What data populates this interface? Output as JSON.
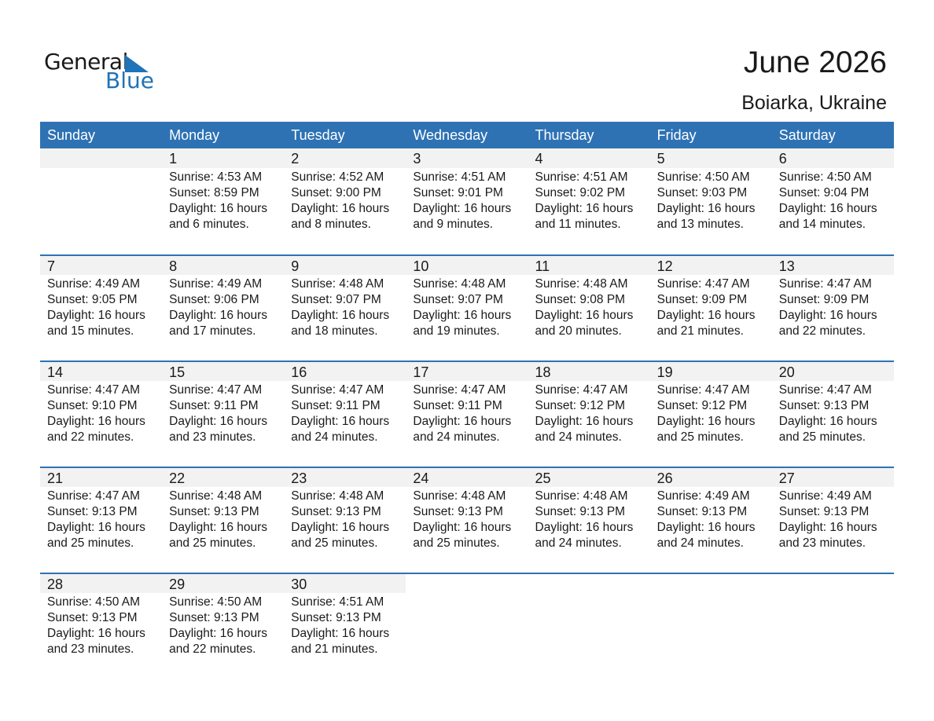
{
  "logo": {
    "text_general": "General",
    "text_blue": "Blue",
    "color": "#1f73b8"
  },
  "header": {
    "title": "June 2026",
    "location": "Boiarka, Ukraine"
  },
  "colors": {
    "header_bg": "#2e72b4",
    "day_band": "#f2f2f2"
  },
  "weekdays": [
    "Sunday",
    "Monday",
    "Tuesday",
    "Wednesday",
    "Thursday",
    "Friday",
    "Saturday"
  ],
  "weeks": [
    [
      null,
      {
        "day": "1",
        "sunrise": "Sunrise: 4:53 AM",
        "sunset": "Sunset: 8:59 PM",
        "daylight1": "Daylight: 16 hours",
        "daylight2": "and 6 minutes."
      },
      {
        "day": "2",
        "sunrise": "Sunrise: 4:52 AM",
        "sunset": "Sunset: 9:00 PM",
        "daylight1": "Daylight: 16 hours",
        "daylight2": "and 8 minutes."
      },
      {
        "day": "3",
        "sunrise": "Sunrise: 4:51 AM",
        "sunset": "Sunset: 9:01 PM",
        "daylight1": "Daylight: 16 hours",
        "daylight2": "and 9 minutes."
      },
      {
        "day": "4",
        "sunrise": "Sunrise: 4:51 AM",
        "sunset": "Sunset: 9:02 PM",
        "daylight1": "Daylight: 16 hours",
        "daylight2": "and 11 minutes."
      },
      {
        "day": "5",
        "sunrise": "Sunrise: 4:50 AM",
        "sunset": "Sunset: 9:03 PM",
        "daylight1": "Daylight: 16 hours",
        "daylight2": "and 13 minutes."
      },
      {
        "day": "6",
        "sunrise": "Sunrise: 4:50 AM",
        "sunset": "Sunset: 9:04 PM",
        "daylight1": "Daylight: 16 hours",
        "daylight2": "and 14 minutes."
      }
    ],
    [
      {
        "day": "7",
        "sunrise": "Sunrise: 4:49 AM",
        "sunset": "Sunset: 9:05 PM",
        "daylight1": "Daylight: 16 hours",
        "daylight2": "and 15 minutes."
      },
      {
        "day": "8",
        "sunrise": "Sunrise: 4:49 AM",
        "sunset": "Sunset: 9:06 PM",
        "daylight1": "Daylight: 16 hours",
        "daylight2": "and 17 minutes."
      },
      {
        "day": "9",
        "sunrise": "Sunrise: 4:48 AM",
        "sunset": "Sunset: 9:07 PM",
        "daylight1": "Daylight: 16 hours",
        "daylight2": "and 18 minutes."
      },
      {
        "day": "10",
        "sunrise": "Sunrise: 4:48 AM",
        "sunset": "Sunset: 9:07 PM",
        "daylight1": "Daylight: 16 hours",
        "daylight2": "and 19 minutes."
      },
      {
        "day": "11",
        "sunrise": "Sunrise: 4:48 AM",
        "sunset": "Sunset: 9:08 PM",
        "daylight1": "Daylight: 16 hours",
        "daylight2": "and 20 minutes."
      },
      {
        "day": "12",
        "sunrise": "Sunrise: 4:47 AM",
        "sunset": "Sunset: 9:09 PM",
        "daylight1": "Daylight: 16 hours",
        "daylight2": "and 21 minutes."
      },
      {
        "day": "13",
        "sunrise": "Sunrise: 4:47 AM",
        "sunset": "Sunset: 9:09 PM",
        "daylight1": "Daylight: 16 hours",
        "daylight2": "and 22 minutes."
      }
    ],
    [
      {
        "day": "14",
        "sunrise": "Sunrise: 4:47 AM",
        "sunset": "Sunset: 9:10 PM",
        "daylight1": "Daylight: 16 hours",
        "daylight2": "and 22 minutes."
      },
      {
        "day": "15",
        "sunrise": "Sunrise: 4:47 AM",
        "sunset": "Sunset: 9:11 PM",
        "daylight1": "Daylight: 16 hours",
        "daylight2": "and 23 minutes."
      },
      {
        "day": "16",
        "sunrise": "Sunrise: 4:47 AM",
        "sunset": "Sunset: 9:11 PM",
        "daylight1": "Daylight: 16 hours",
        "daylight2": "and 24 minutes."
      },
      {
        "day": "17",
        "sunrise": "Sunrise: 4:47 AM",
        "sunset": "Sunset: 9:11 PM",
        "daylight1": "Daylight: 16 hours",
        "daylight2": "and 24 minutes."
      },
      {
        "day": "18",
        "sunrise": "Sunrise: 4:47 AM",
        "sunset": "Sunset: 9:12 PM",
        "daylight1": "Daylight: 16 hours",
        "daylight2": "and 24 minutes."
      },
      {
        "day": "19",
        "sunrise": "Sunrise: 4:47 AM",
        "sunset": "Sunset: 9:12 PM",
        "daylight1": "Daylight: 16 hours",
        "daylight2": "and 25 minutes."
      },
      {
        "day": "20",
        "sunrise": "Sunrise: 4:47 AM",
        "sunset": "Sunset: 9:13 PM",
        "daylight1": "Daylight: 16 hours",
        "daylight2": "and 25 minutes."
      }
    ],
    [
      {
        "day": "21",
        "sunrise": "Sunrise: 4:47 AM",
        "sunset": "Sunset: 9:13 PM",
        "daylight1": "Daylight: 16 hours",
        "daylight2": "and 25 minutes."
      },
      {
        "day": "22",
        "sunrise": "Sunrise: 4:48 AM",
        "sunset": "Sunset: 9:13 PM",
        "daylight1": "Daylight: 16 hours",
        "daylight2": "and 25 minutes."
      },
      {
        "day": "23",
        "sunrise": "Sunrise: 4:48 AM",
        "sunset": "Sunset: 9:13 PM",
        "daylight1": "Daylight: 16 hours",
        "daylight2": "and 25 minutes."
      },
      {
        "day": "24",
        "sunrise": "Sunrise: 4:48 AM",
        "sunset": "Sunset: 9:13 PM",
        "daylight1": "Daylight: 16 hours",
        "daylight2": "and 25 minutes."
      },
      {
        "day": "25",
        "sunrise": "Sunrise: 4:48 AM",
        "sunset": "Sunset: 9:13 PM",
        "daylight1": "Daylight: 16 hours",
        "daylight2": "and 24 minutes."
      },
      {
        "day": "26",
        "sunrise": "Sunrise: 4:49 AM",
        "sunset": "Sunset: 9:13 PM",
        "daylight1": "Daylight: 16 hours",
        "daylight2": "and 24 minutes."
      },
      {
        "day": "27",
        "sunrise": "Sunrise: 4:49 AM",
        "sunset": "Sunset: 9:13 PM",
        "daylight1": "Daylight: 16 hours",
        "daylight2": "and 23 minutes."
      }
    ],
    [
      {
        "day": "28",
        "sunrise": "Sunrise: 4:50 AM",
        "sunset": "Sunset: 9:13 PM",
        "daylight1": "Daylight: 16 hours",
        "daylight2": "and 23 minutes."
      },
      {
        "day": "29",
        "sunrise": "Sunrise: 4:50 AM",
        "sunset": "Sunset: 9:13 PM",
        "daylight1": "Daylight: 16 hours",
        "daylight2": "and 22 minutes."
      },
      {
        "day": "30",
        "sunrise": "Sunrise: 4:51 AM",
        "sunset": "Sunset: 9:13 PM",
        "daylight1": "Daylight: 16 hours",
        "daylight2": "and 21 minutes."
      },
      null,
      null,
      null,
      null
    ]
  ]
}
